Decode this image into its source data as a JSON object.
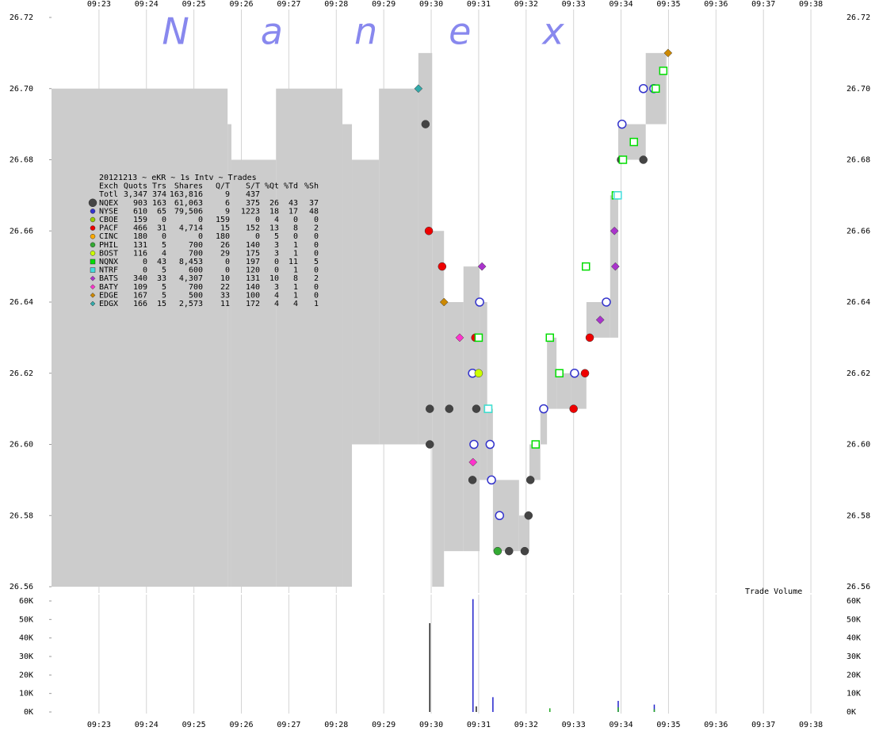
{
  "chart_data": [
    {
      "type": "scatter",
      "title": "20121213 ~ eKR ~ 1s Intv ~ Trades",
      "watermark": "Nanex",
      "xlim": [
        562,
        578.7
      ],
      "xticks": [
        {
          "value": 563,
          "label": "09:23"
        },
        {
          "value": 564,
          "label": "09:24"
        },
        {
          "value": 565,
          "label": "09:25"
        },
        {
          "value": 566,
          "label": "09:26"
        },
        {
          "value": 567,
          "label": "09:27"
        },
        {
          "value": 568,
          "label": "09:28"
        },
        {
          "value": 569,
          "label": "09:29"
        },
        {
          "value": 570,
          "label": "09:30"
        },
        {
          "value": 571,
          "label": "09:31"
        },
        {
          "value": 572,
          "label": "09:32"
        },
        {
          "value": 573,
          "label": "09:33"
        },
        {
          "value": 574,
          "label": "09:34"
        },
        {
          "value": 575,
          "label": "09:35"
        },
        {
          "value": 576,
          "label": "09:36"
        },
        {
          "value": 577,
          "label": "09:37"
        },
        {
          "value": 578,
          "label": "09:38"
        }
      ],
      "ylim": [
        26.56,
        26.72
      ],
      "yticks": [
        26.56,
        26.58,
        {
          "value": 26.6,
          "label": "26.60"
        },
        26.62,
        26.64,
        26.66,
        26.68,
        {
          "value": 26.7,
          "label": "26.70"
        },
        26.72
      ],
      "grid": true,
      "spread": {
        "color": "#cccccc",
        "x": [
          562,
          565.71,
          565.79,
          566.73,
          568.13,
          568.33,
          568.9,
          569.73,
          570.02,
          570.27,
          570.68,
          571.02,
          571.18,
          571.3,
          571.85,
          572.07,
          572.3,
          572.44,
          572.64,
          572.94,
          573.27,
          573.77,
          573.94,
          574.52,
          574.94
        ],
        "low": [
          26.56,
          26.56,
          26.56,
          26.56,
          26.56,
          26.6,
          26.6,
          26.6,
          26.56,
          26.57,
          26.57,
          26.59,
          26.59,
          26.57,
          26.57,
          26.59,
          26.6,
          26.61,
          26.61,
          26.61,
          26.63,
          26.63,
          26.68,
          26.69,
          26.69
        ],
        "high": [
          26.7,
          26.69,
          26.68,
          26.7,
          26.69,
          26.68,
          26.7,
          26.71,
          26.66,
          26.64,
          26.65,
          26.64,
          26.61,
          26.59,
          26.58,
          26.6,
          26.61,
          26.63,
          26.62,
          26.62,
          26.64,
          26.67,
          26.69,
          26.71,
          26.71
        ]
      },
      "series": [
        {
          "name": "NQEX",
          "color": "#444444",
          "marker": "circle",
          "x": [
            569.88,
            569.97,
            569.97,
            570.38,
            570.87,
            570.95,
            571.64,
            571.97,
            572.05,
            572.09,
            574.0,
            574.47
          ],
          "values": [
            26.69,
            26.61,
            26.6,
            26.61,
            26.59,
            26.61,
            26.57,
            26.57,
            26.58,
            26.59,
            26.68,
            26.68
          ]
        },
        {
          "name": "NYSE",
          "color": "#3333cc",
          "marker": "circle",
          "x": [
            570.87,
            570.9,
            571.24,
            571.27,
            571.02,
            571.44,
            572.37,
            573.02,
            573.69,
            574.02,
            574.47,
            574.69
          ],
          "values": [
            26.62,
            26.6,
            26.6,
            26.59,
            26.64,
            26.58,
            26.61,
            26.62,
            26.64,
            26.69,
            26.7,
            26.7
          ]
        },
        {
          "name": "CBOE",
          "color": "#99cc00",
          "marker": "circle",
          "x": [],
          "values": []
        },
        {
          "name": "PACF",
          "color": "#ee0000",
          "marker": "circle",
          "x": [
            569.95,
            570.23,
            570.93,
            573.0,
            573.24,
            573.34
          ],
          "values": [
            26.66,
            26.65,
            26.63,
            26.61,
            26.62,
            26.63
          ]
        },
        {
          "name": "CINC",
          "color": "#ffaa00",
          "marker": "circle",
          "x": [],
          "values": []
        },
        {
          "name": "PHIL",
          "color": "#33aa33",
          "marker": "circle",
          "x": [
            571.4
          ],
          "values": [
            26.57
          ]
        },
        {
          "name": "BOST",
          "color": "#ccff00",
          "marker": "circle",
          "x": [
            571.0
          ],
          "values": [
            26.62
          ]
        },
        {
          "name": "NQNX",
          "color": "#00dd00",
          "marker": "square",
          "x": [
            571.0,
            571.2,
            572.2,
            572.5,
            572.7,
            573.26,
            573.89,
            574.04,
            574.27,
            574.73,
            574.89
          ],
          "values": [
            26.63,
            26.61,
            26.6,
            26.63,
            26.62,
            26.65,
            26.67,
            26.68,
            26.685,
            26.7,
            26.705
          ]
        },
        {
          "name": "NTRF",
          "color": "#44dddd",
          "marker": "square",
          "x": [
            571.2,
            573.93
          ],
          "values": [
            26.61,
            26.67
          ]
        },
        {
          "name": "BATS",
          "color": "#aa33cc",
          "marker": "diamond",
          "x": [
            571.07,
            573.56,
            573.86,
            573.88
          ],
          "values": [
            26.65,
            26.635,
            26.66,
            26.65
          ]
        },
        {
          "name": "BATY",
          "color": "#ff33cc",
          "marker": "diamond",
          "x": [
            570.88,
            570.6
          ],
          "values": [
            26.595,
            26.63
          ]
        },
        {
          "name": "EDGE",
          "color": "#cc8800",
          "marker": "diamond",
          "x": [
            570.27,
            574.99
          ],
          "values": [
            26.64,
            26.71
          ]
        },
        {
          "name": "EDGX",
          "color": "#33aaaa",
          "marker": "diamond",
          "x": [
            569.73
          ],
          "values": [
            26.7
          ]
        }
      ],
      "table": {
        "columns": [
          "Exch",
          "Quots",
          "Trs",
          "Shares",
          "Q/T",
          "S/T",
          "%Qt",
          "%Td",
          "%Sh"
        ],
        "total": [
          "Totl",
          "3,347",
          "374",
          "163,816",
          "9",
          "437"
        ],
        "rows": [
          [
            "903",
            "163",
            "61,063",
            "6",
            "375",
            "26",
            "43",
            "37"
          ],
          [
            "610",
            "65",
            "79,506",
            "9",
            "1223",
            "18",
            "17",
            "48"
          ],
          [
            "159",
            "0",
            "0",
            "159",
            "0",
            "4",
            "0",
            "0"
          ],
          [
            "466",
            "31",
            "4,714",
            "15",
            "152",
            "13",
            "8",
            "2"
          ],
          [
            "180",
            "0",
            "0",
            "180",
            "0",
            "5",
            "0",
            "0"
          ],
          [
            "131",
            "5",
            "700",
            "26",
            "140",
            "3",
            "1",
            "0"
          ],
          [
            "116",
            "4",
            "700",
            "29",
            "175",
            "3",
            "1",
            "0"
          ],
          [
            "0",
            "43",
            "8,453",
            "0",
            "197",
            "0",
            "11",
            "5"
          ],
          [
            "0",
            "5",
            "600",
            "0",
            "120",
            "0",
            "1",
            "0"
          ],
          [
            "340",
            "33",
            "4,307",
            "10",
            "131",
            "10",
            "8",
            "2"
          ],
          [
            "109",
            "5",
            "700",
            "22",
            "140",
            "3",
            "1",
            "0"
          ],
          [
            "167",
            "5",
            "500",
            "33",
            "100",
            "4",
            "1",
            "0"
          ],
          [
            "166",
            "15",
            "2,573",
            "11",
            "172",
            "4",
            "4",
            "1"
          ]
        ]
      }
    },
    {
      "type": "bar",
      "label": "Trade Volume",
      "xlim": [
        562,
        578.7
      ],
      "xticks": [
        {
          "value": 563,
          "label": "09:23"
        },
        {
          "value": 564,
          "label": "09:24"
        },
        {
          "value": 565,
          "label": "09:25"
        },
        {
          "value": 566,
          "label": "09:26"
        },
        {
          "value": 567,
          "label": "09:27"
        },
        {
          "value": 568,
          "label": "09:28"
        },
        {
          "value": 569,
          "label": "09:29"
        },
        {
          "value": 570,
          "label": "09:30"
        },
        {
          "value": 571,
          "label": "09:31"
        },
        {
          "value": 572,
          "label": "09:32"
        },
        {
          "value": 573,
          "label": "09:33"
        },
        {
          "value": 574,
          "label": "09:34"
        },
        {
          "value": 575,
          "label": "09:35"
        },
        {
          "value": 576,
          "label": "09:36"
        },
        {
          "value": 577,
          "label": "09:37"
        },
        {
          "value": 578,
          "label": "09:38"
        }
      ],
      "ylim": [
        0,
        60000
      ],
      "yticks": [
        {
          "value": 0,
          "label": "0K"
        },
        {
          "value": 10000,
          "label": "10K"
        },
        {
          "value": 20000,
          "label": "20K"
        },
        {
          "value": 30000,
          "label": "30K"
        },
        {
          "value": 40000,
          "label": "40K"
        },
        {
          "value": 50000,
          "label": "50K"
        },
        {
          "value": 60000,
          "label": "60K"
        }
      ],
      "grid": true,
      "x": [
        569.97,
        570.88,
        570.95,
        571.3,
        572.5,
        573.94,
        574.7
      ],
      "series": [
        {
          "color": "#222222",
          "values": [
            48000,
            null,
            3000,
            null,
            null,
            null,
            null
          ]
        },
        {
          "color": "#2222cc",
          "values": [
            null,
            61000,
            null,
            8000,
            1500,
            6000,
            4000
          ]
        },
        {
          "color": "#22aa22",
          "values": [
            null,
            null,
            null,
            null,
            2000,
            2500,
            1500
          ]
        }
      ]
    }
  ]
}
